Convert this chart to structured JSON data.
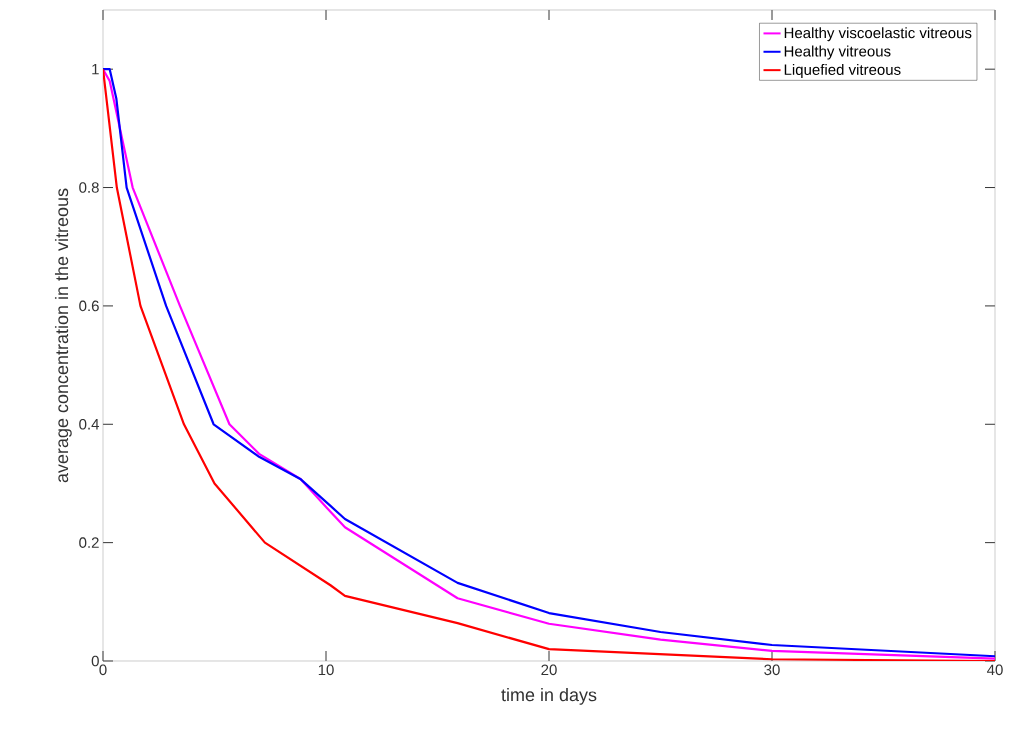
{
  "chart_data": {
    "type": "line",
    "xlabel": "time in days",
    "ylabel": "average concentration in the vitreous",
    "xlim": [
      0,
      40
    ],
    "ylim": [
      0,
      1.1
    ],
    "xticks": [
      0,
      10,
      20,
      30,
      40
    ],
    "yticks": [
      0,
      0.2,
      0.4,
      0.6,
      0.8,
      1
    ],
    "legend": "top right",
    "grid": false,
    "marker": "none",
    "line_style": "solid",
    "series": [
      {
        "name": "Healthy viscoelastic vitreous",
        "color": "#ff00ff",
        "x": [
          0,
          0.3,
          1.33,
          3.45,
          5.67,
          7,
          8.87,
          10.2,
          10.85,
          15.9,
          20,
          25,
          30,
          40
        ],
        "values": [
          1,
          0.98,
          0.8,
          0.6,
          0.4,
          0.35,
          0.307,
          0.252,
          0.226,
          0.106,
          0.063,
          0.036,
          0.017,
          0.004
        ]
      },
      {
        "name": "Healthy vitreous",
        "color": "#0000ff",
        "x": [
          0,
          0.3,
          0.6,
          1.06,
          2.83,
          4.96,
          7,
          8.87,
          10.2,
          10.85,
          15.9,
          20,
          25,
          30,
          40
        ],
        "values": [
          1,
          1,
          0.95,
          0.8,
          0.6,
          0.4,
          0.345,
          0.307,
          0.262,
          0.24,
          0.132,
          0.081,
          0.049,
          0.027,
          0.008
        ]
      },
      {
        "name": "Liquefied vitreous",
        "color": "#ff0000",
        "x": [
          0,
          0.62,
          1.68,
          3.63,
          5,
          7.26,
          10.2,
          10.85,
          15.9,
          20,
          30,
          40
        ],
        "values": [
          1,
          0.8,
          0.6,
          0.4,
          0.3,
          0.2,
          0.128,
          0.11,
          0.064,
          0.02,
          0.003,
          0
        ]
      }
    ]
  }
}
